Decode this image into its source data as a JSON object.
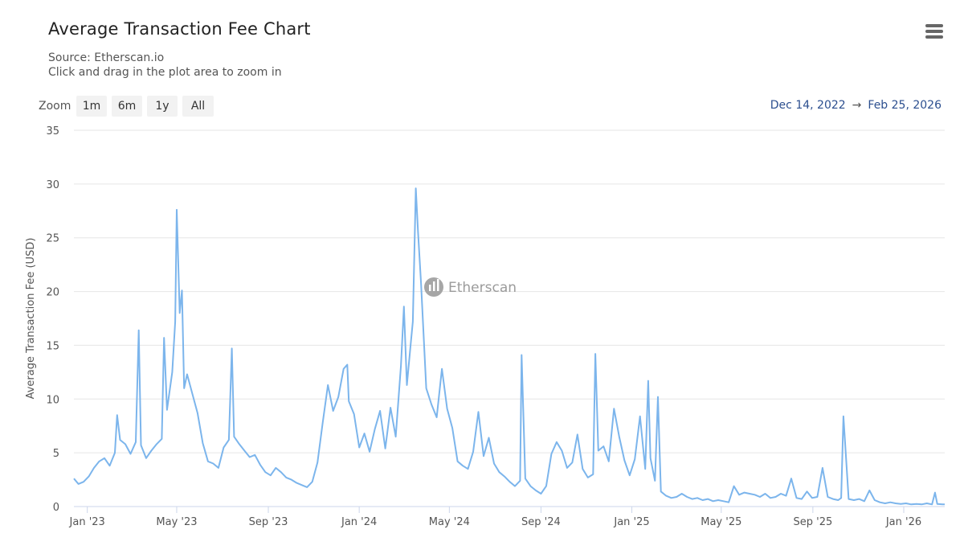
{
  "header": {
    "title": "Average Transaction Fee Chart",
    "source": "Source: Etherscan.io",
    "hint": "Click and drag in the plot area to zoom in"
  },
  "zoom": {
    "label": "Zoom",
    "buttons": [
      "1m",
      "6m",
      "1y",
      "All"
    ]
  },
  "range": {
    "from": "Dec 14, 2022",
    "arrow": "→",
    "to": "Feb 25, 2026"
  },
  "watermark": "Etherscan",
  "colors": {
    "line": "#7cb5ec",
    "grid": "#e6e6e6",
    "range_text": "#2c4f8f"
  },
  "chart_data": {
    "type": "line",
    "title": "Average Transaction Fee Chart",
    "ylabel": "Average Transaction Fee (USD)",
    "ylim": [
      0,
      35
    ],
    "yticks": [
      0,
      5,
      10,
      15,
      20,
      25,
      30,
      35
    ],
    "xlim": [
      "2022-12-14",
      "2026-02-25"
    ],
    "xticks": [
      {
        "date": "2023-01-01",
        "label": "Jan '23"
      },
      {
        "date": "2023-05-01",
        "label": "May '23"
      },
      {
        "date": "2023-09-01",
        "label": "Sep '23"
      },
      {
        "date": "2024-01-01",
        "label": "Jan '24"
      },
      {
        "date": "2024-05-01",
        "label": "May '24"
      },
      {
        "date": "2024-09-01",
        "label": "Sep '24"
      },
      {
        "date": "2025-01-01",
        "label": "Jan '25"
      },
      {
        "date": "2025-05-01",
        "label": "May '25"
      },
      {
        "date": "2025-09-01",
        "label": "Sep '25"
      },
      {
        "date": "2026-01-01",
        "label": "Jan '26"
      }
    ],
    "grid": true,
    "legend": "none",
    "series": [
      {
        "x": [
          "2022-12-14",
          "2022-12-20",
          "2022-12-27",
          "2023-01-03",
          "2023-01-10",
          "2023-01-17",
          "2023-01-24",
          "2023-01-31",
          "2023-02-07",
          "2023-02-10",
          "2023-02-14",
          "2023-02-21",
          "2023-02-28",
          "2023-03-07",
          "2023-03-11",
          "2023-03-14",
          "2023-03-21",
          "2023-03-28",
          "2023-04-04",
          "2023-04-11",
          "2023-04-14",
          "2023-04-18",
          "2023-04-25",
          "2023-04-29",
          "2023-05-01",
          "2023-05-05",
          "2023-05-08",
          "2023-05-11",
          "2023-05-15",
          "2023-05-22",
          "2023-05-29",
          "2023-06-05",
          "2023-06-12",
          "2023-06-19",
          "2023-06-26",
          "2023-07-03",
          "2023-07-10",
          "2023-07-14",
          "2023-07-17",
          "2023-07-24",
          "2023-07-31",
          "2023-08-07",
          "2023-08-14",
          "2023-08-21",
          "2023-08-28",
          "2023-09-04",
          "2023-09-11",
          "2023-09-18",
          "2023-09-25",
          "2023-10-02",
          "2023-10-09",
          "2023-10-16",
          "2023-10-23",
          "2023-10-30",
          "2023-11-06",
          "2023-11-13",
          "2023-11-20",
          "2023-11-27",
          "2023-12-04",
          "2023-12-11",
          "2023-12-16",
          "2023-12-18",
          "2023-12-25",
          "2024-01-01",
          "2024-01-08",
          "2024-01-15",
          "2024-01-22",
          "2024-01-29",
          "2024-02-05",
          "2024-02-12",
          "2024-02-19",
          "2024-02-26",
          "2024-03-01",
          "2024-03-05",
          "2024-03-10",
          "2024-03-13",
          "2024-03-17",
          "2024-03-20",
          "2024-03-24",
          "2024-03-31",
          "2024-04-07",
          "2024-04-14",
          "2024-04-21",
          "2024-04-28",
          "2024-05-05",
          "2024-05-12",
          "2024-05-19",
          "2024-05-26",
          "2024-06-02",
          "2024-06-09",
          "2024-06-16",
          "2024-06-23",
          "2024-06-30",
          "2024-07-07",
          "2024-07-14",
          "2024-07-21",
          "2024-07-28",
          "2024-08-04",
          "2024-08-06",
          "2024-08-11",
          "2024-08-18",
          "2024-08-25",
          "2024-09-01",
          "2024-09-08",
          "2024-09-15",
          "2024-09-22",
          "2024-09-29",
          "2024-10-06",
          "2024-10-13",
          "2024-10-20",
          "2024-10-27",
          "2024-11-03",
          "2024-11-10",
          "2024-11-13",
          "2024-11-17",
          "2024-11-24",
          "2024-12-01",
          "2024-12-08",
          "2024-12-15",
          "2024-12-22",
          "2024-12-29",
          "2025-01-05",
          "2025-01-12",
          "2025-01-19",
          "2025-01-23",
          "2025-01-26",
          "2025-02-01",
          "2025-02-05",
          "2025-02-09",
          "2025-02-16",
          "2025-02-23",
          "2025-03-02",
          "2025-03-09",
          "2025-03-16",
          "2025-03-23",
          "2025-03-30",
          "2025-04-06",
          "2025-04-13",
          "2025-04-20",
          "2025-04-27",
          "2025-05-04",
          "2025-05-11",
          "2025-05-18",
          "2025-05-25",
          "2025-06-01",
          "2025-06-08",
          "2025-06-15",
          "2025-06-22",
          "2025-06-29",
          "2025-07-06",
          "2025-07-13",
          "2025-07-20",
          "2025-07-27",
          "2025-08-03",
          "2025-08-10",
          "2025-08-17",
          "2025-08-24",
          "2025-08-31",
          "2025-09-07",
          "2025-09-14",
          "2025-09-21",
          "2025-09-28",
          "2025-10-05",
          "2025-10-09",
          "2025-10-12",
          "2025-10-19",
          "2025-10-26",
          "2025-11-02",
          "2025-11-09",
          "2025-11-16",
          "2025-11-23",
          "2025-11-30",
          "2025-12-07",
          "2025-12-14",
          "2025-12-21",
          "2025-12-28",
          "2026-01-04",
          "2026-01-11",
          "2026-01-18",
          "2026-01-25",
          "2026-02-01",
          "2026-02-08",
          "2026-02-12",
          "2026-02-15",
          "2026-02-22",
          "2026-02-25"
        ],
        "y": [
          2.6,
          2.1,
          2.3,
          2.8,
          3.6,
          4.2,
          4.5,
          3.8,
          5.0,
          8.5,
          6.2,
          5.8,
          4.9,
          6.0,
          16.4,
          5.7,
          4.5,
          5.2,
          5.8,
          6.3,
          15.7,
          9.0,
          12.5,
          17.2,
          27.6,
          18.0,
          20.1,
          11.0,
          12.3,
          10.5,
          8.7,
          5.9,
          4.2,
          4.0,
          3.6,
          5.5,
          6.2,
          14.7,
          6.5,
          5.8,
          5.2,
          4.6,
          4.8,
          3.9,
          3.2,
          2.9,
          3.6,
          3.2,
          2.7,
          2.5,
          2.2,
          2.0,
          1.8,
          2.3,
          4.1,
          7.8,
          11.3,
          8.9,
          10.2,
          12.8,
          13.2,
          9.8,
          8.6,
          5.5,
          6.8,
          5.1,
          7.2,
          8.9,
          5.4,
          9.2,
          6.5,
          13.1,
          18.6,
          11.3,
          15.0,
          17.2,
          29.6,
          25.5,
          20.8,
          11.0,
          9.5,
          8.3,
          12.8,
          9.1,
          7.3,
          4.2,
          3.8,
          3.5,
          5.1,
          8.8,
          4.7,
          6.4,
          4.0,
          3.2,
          2.8,
          2.3,
          1.9,
          2.4,
          14.1,
          2.6,
          1.9,
          1.5,
          1.2,
          1.9,
          4.9,
          6.0,
          5.2,
          3.6,
          4.1,
          6.7,
          3.5,
          2.7,
          3.0,
          14.2,
          5.2,
          5.6,
          4.2,
          9.1,
          6.5,
          4.3,
          2.9,
          4.4,
          8.4,
          3.5,
          11.7,
          4.5,
          2.4,
          10.2,
          1.4,
          1.0,
          0.8,
          0.9,
          1.2,
          0.9,
          0.7,
          0.8,
          0.6,
          0.7,
          0.5,
          0.6,
          0.5,
          0.4,
          1.9,
          1.1,
          1.3,
          1.2,
          1.1,
          0.9,
          1.2,
          0.8,
          0.9,
          1.2,
          1.0,
          2.6,
          0.8,
          0.7,
          1.4,
          0.8,
          0.9,
          3.6,
          0.9,
          0.7,
          0.6,
          0.8,
          8.4,
          0.7,
          0.6,
          0.7,
          0.5,
          1.5,
          0.6,
          0.4,
          0.3,
          0.4,
          0.3,
          0.25,
          0.3,
          0.2,
          0.25,
          0.2,
          0.3,
          0.2,
          1.3,
          0.25,
          0.2,
          0.2
        ]
      }
    ]
  }
}
